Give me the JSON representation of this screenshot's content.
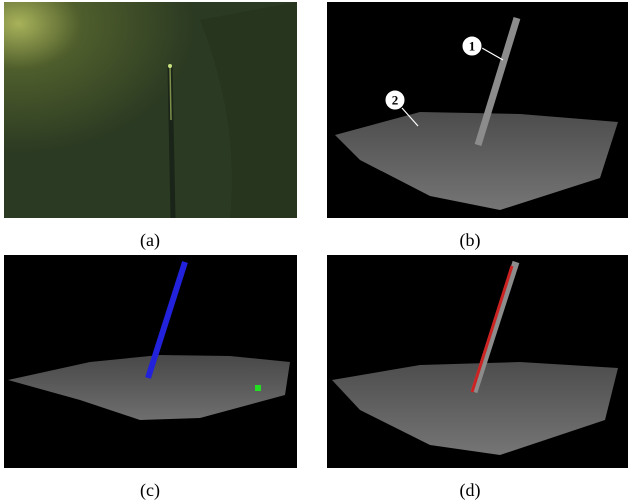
{
  "panels": [
    {
      "caption": "(a)"
    },
    {
      "caption": "(b)",
      "annotations": [
        "1",
        "2"
      ]
    },
    {
      "caption": "(c)"
    },
    {
      "caption": "(d)"
    }
  ]
}
